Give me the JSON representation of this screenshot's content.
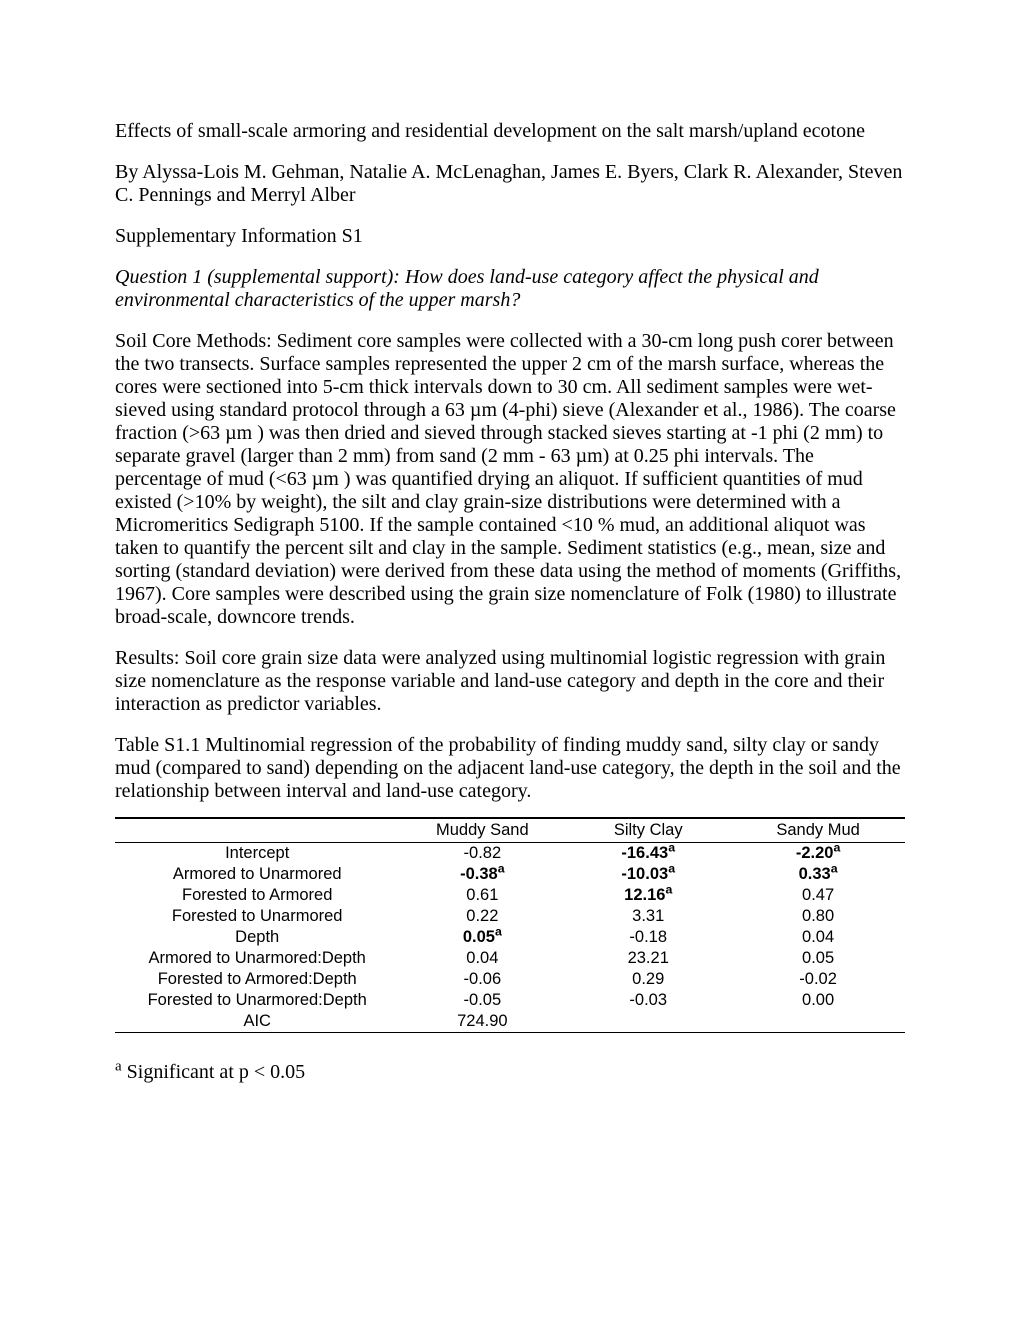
{
  "title": "Effects of small-scale armoring and residential development on the salt marsh/upland ecotone",
  "authors": "By Alyssa-Lois M. Gehman, Natalie A. McLenaghan, James E. Byers, Clark R. Alexander, Steven C. Pennings and Merryl Alber",
  "supplement_heading": "Supplementary Information S1",
  "question": "Question 1 (supplemental support): How does land-use category affect the physical and environmental characteristics of the upper marsh?",
  "methods": "Soil Core Methods: Sediment core samples were collected with a 30-cm long push corer between the two transects.  Surface samples represented the upper 2 cm of the marsh surface, whereas the cores were sectioned into 5-cm thick intervals down to 30 cm.  All sediment samples were wet-sieved using standard protocol through a 63 µm (4-phi) sieve (Alexander et al., 1986).  The coarse fraction (>63 µm ) was then dried and sieved through stacked sieves starting at -1 phi (2 mm) to separate gravel (larger than 2 mm) from sand (2 mm - 63 µm) at 0.25 phi intervals.  The percentage of mud (<63 µm ) was quantified drying an aliquot.  If sufficient quantities of mud existed (>10% by weight), the silt and clay grain-size distributions were determined with a Micromeritics Sedigraph 5100.  If the sample contained <10 % mud, an additional aliquot was taken to quantify the percent silt and clay in the sample.  Sediment statistics (e.g., mean, size and sorting (standard deviation) were derived from these data using the method of moments (Griffiths, 1967).  Core samples were described using the grain size nomenclature of Folk (1980) to illustrate broad-scale, downcore trends.",
  "results": "Results: Soil core grain size data were analyzed using multinomial logistic regression with grain size nomenclature as the response variable and land-use category and depth in the core and their interaction as predictor variables.",
  "table_caption": "Table S1.1 Multinomial regression of the probability of finding muddy sand, silty clay or sandy mud (compared to sand) depending on the adjacent land-use category, the depth in the soil and the relationship between interval and land-use category.",
  "table": {
    "header_font_family": "Verdana",
    "header_fontsize": 16.5,
    "body_font_family": "Verdana",
    "body_fontsize": 16.5,
    "border_color": "#000000",
    "columns": [
      "",
      "Muddy Sand",
      "Silty Clay",
      "Sandy Mud"
    ],
    "col_widths": [
      "36%",
      "21%",
      "21%",
      "22%"
    ],
    "rows": [
      {
        "label": "Intercept",
        "muddy": {
          "val": "-0.82",
          "bold": false,
          "sig": false
        },
        "silty": {
          "val": "-16.43",
          "bold": true,
          "sig": true
        },
        "sandy": {
          "val": "-2.20",
          "bold": true,
          "sig": true
        }
      },
      {
        "label": "Armored to Unarmored",
        "muddy": {
          "val": "-0.38",
          "bold": true,
          "sig": true
        },
        "silty": {
          "val": "-10.03",
          "bold": true,
          "sig": true
        },
        "sandy": {
          "val": "0.33",
          "bold": true,
          "sig": true
        }
      },
      {
        "label": "Forested to Armored",
        "muddy": {
          "val": "0.61",
          "bold": false,
          "sig": false
        },
        "silty": {
          "val": "12.16",
          "bold": true,
          "sig": true
        },
        "sandy": {
          "val": "0.47",
          "bold": false,
          "sig": false
        }
      },
      {
        "label": "Forested to Unarmored",
        "muddy": {
          "val": "0.22",
          "bold": false,
          "sig": false
        },
        "silty": {
          "val": "3.31",
          "bold": false,
          "sig": false
        },
        "sandy": {
          "val": "0.80",
          "bold": false,
          "sig": false
        }
      },
      {
        "label": "Depth",
        "muddy": {
          "val": "0.05",
          "bold": true,
          "sig": true
        },
        "silty": {
          "val": "-0.18",
          "bold": false,
          "sig": false
        },
        "sandy": {
          "val": "0.04",
          "bold": false,
          "sig": false
        }
      },
      {
        "label": "Armored to Unarmored:Depth",
        "muddy": {
          "val": "0.04",
          "bold": false,
          "sig": false
        },
        "silty": {
          "val": "23.21",
          "bold": false,
          "sig": false
        },
        "sandy": {
          "val": "0.05",
          "bold": false,
          "sig": false
        }
      },
      {
        "label": "Forested to Armored:Depth",
        "muddy": {
          "val": "-0.06",
          "bold": false,
          "sig": false
        },
        "silty": {
          "val": "0.29",
          "bold": false,
          "sig": false
        },
        "sandy": {
          "val": "-0.02",
          "bold": false,
          "sig": false
        }
      },
      {
        "label": "Forested to Unarmored:Depth",
        "muddy": {
          "val": "-0.05",
          "bold": false,
          "sig": false
        },
        "silty": {
          "val": "-0.03",
          "bold": false,
          "sig": false
        },
        "sandy": {
          "val": "0.00",
          "bold": false,
          "sig": false
        }
      },
      {
        "label": "AIC",
        "muddy": {
          "val": "724.90",
          "bold": false,
          "sig": false
        },
        "silty": {
          "val": "",
          "bold": false,
          "sig": false
        },
        "sandy": {
          "val": "",
          "bold": false,
          "sig": false
        }
      }
    ]
  },
  "footnote_marker": "a",
  "footnote_text": "Significant at p < 0.05"
}
